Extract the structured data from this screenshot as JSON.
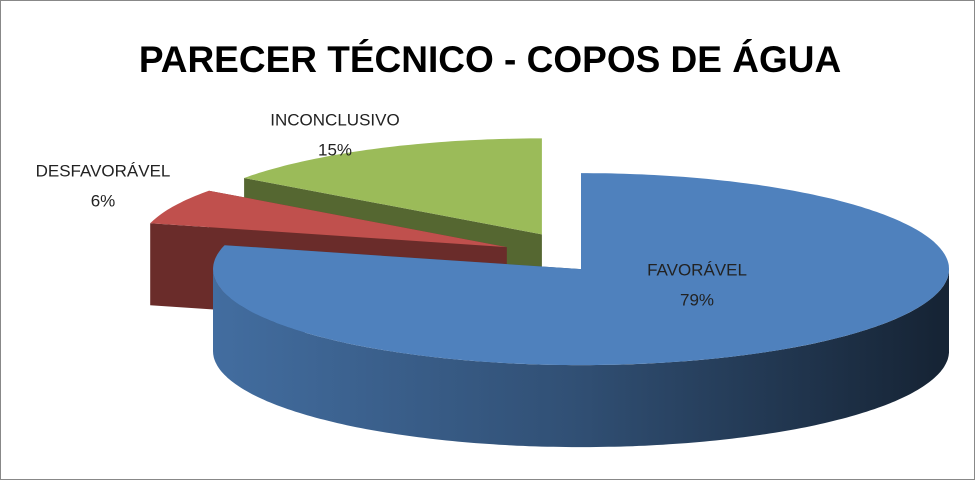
{
  "chart_data": {
    "type": "pie",
    "title": "PARECER TÉCNICO  - COPOS DE ÁGUA",
    "categories": [
      "FAVORÁVEL",
      "DESFAVORÁVEL",
      "INCONCLUSIVO"
    ],
    "values": [
      79,
      6,
      15
    ],
    "value_labels": [
      "79%",
      "6%",
      "15%"
    ],
    "colors": [
      "#4f81bd",
      "#c0504d",
      "#9bbb59"
    ],
    "three_d": true,
    "exploded": true
  }
}
